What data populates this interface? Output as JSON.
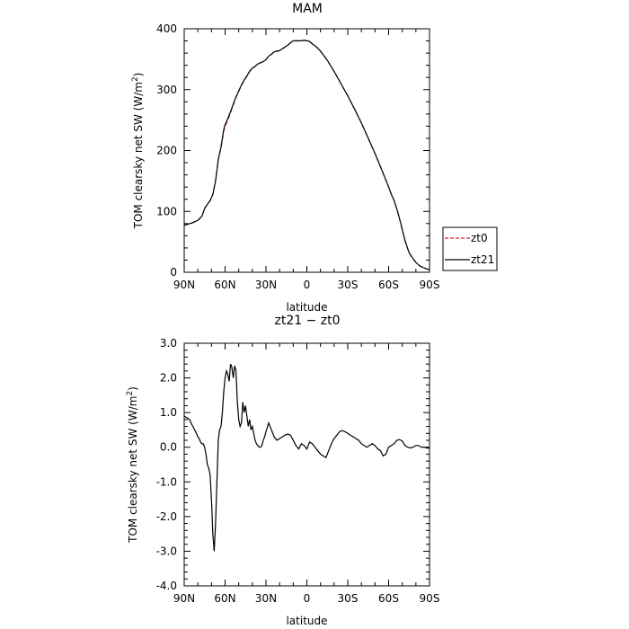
{
  "chart_data": [
    {
      "type": "line",
      "title": "MAM",
      "xlabel": "latitude",
      "ylabel": "TOM clearsky net SW (W/m²)",
      "ylabel_main": "TOM clearsky net SW (W/m",
      "ylabel_sup": "2",
      "ylabel_end": ")",
      "xlim": [
        90,
        -90
      ],
      "ylim": [
        0,
        400
      ],
      "xticks": [
        {
          "value": 90,
          "label": "90N"
        },
        {
          "value": 60,
          "label": "60N"
        },
        {
          "value": 30,
          "label": "30N"
        },
        {
          "value": 0,
          "label": "0"
        },
        {
          "value": -30,
          "label": "30S"
        },
        {
          "value": -60,
          "label": "60S"
        },
        {
          "value": -90,
          "label": "90S"
        }
      ],
      "yticks": [
        {
          "value": 0,
          "label": "0"
        },
        {
          "value": 100,
          "label": "100"
        },
        {
          "value": 200,
          "label": "200"
        },
        {
          "value": 300,
          "label": "300"
        },
        {
          "value": 400,
          "label": "400"
        }
      ],
      "legend": "right",
      "series": [
        {
          "name": "zt0",
          "color": "#d62020",
          "dash": true,
          "x": [
            90,
            85,
            80,
            77,
            75,
            73,
            71,
            69,
            67,
            65,
            63,
            61,
            60,
            58,
            56,
            54,
            52,
            50,
            48,
            46,
            44,
            42,
            40,
            38,
            36,
            34,
            32,
            30,
            28,
            26,
            24,
            22,
            20,
            18,
            16,
            14,
            12,
            10,
            8,
            6,
            4,
            2,
            0,
            -2,
            -4,
            -6,
            -8,
            -10,
            -15,
            -20,
            -25,
            -30,
            -35,
            -40,
            -45,
            -50,
            -55,
            -60,
            -62,
            -64,
            -66,
            -68,
            -70,
            -72,
            -75,
            -78,
            -80,
            -83,
            -86,
            -90
          ],
          "y": [
            77,
            80,
            85,
            92,
            105,
            112,
            118,
            128,
            150,
            185,
            205,
            232,
            240,
            250,
            262,
            275,
            287,
            297,
            307,
            315,
            322,
            330,
            335,
            338,
            342,
            344,
            346,
            349,
            355,
            358,
            362,
            363,
            364,
            367,
            370,
            373,
            377,
            380,
            380,
            380,
            380,
            381,
            380,
            379,
            375,
            372,
            368,
            363,
            348,
            330,
            310,
            290,
            268,
            245,
            220,
            195,
            168,
            140,
            128,
            118,
            104,
            88,
            70,
            52,
            32,
            22,
            16,
            10,
            7,
            4
          ]
        },
        {
          "name": "zt21",
          "color": "#000000",
          "dash": false,
          "x": [
            90,
            85,
            80,
            77,
            75,
            73,
            71,
            69,
            67,
            65,
            63,
            61,
            60,
            58,
            56,
            54,
            52,
            50,
            48,
            46,
            44,
            42,
            40,
            38,
            36,
            34,
            32,
            30,
            28,
            26,
            24,
            22,
            20,
            18,
            16,
            14,
            12,
            10,
            8,
            6,
            4,
            2,
            0,
            -2,
            -4,
            -6,
            -8,
            -10,
            -15,
            -20,
            -25,
            -30,
            -35,
            -40,
            -45,
            -50,
            -55,
            -60,
            -62,
            -64,
            -66,
            -68,
            -70,
            -72,
            -75,
            -78,
            -80,
            -83,
            -86,
            -90
          ],
          "y": [
            77.5,
            80.5,
            85.2,
            92.1,
            104.8,
            111.6,
            117.5,
            127.7,
            149.9,
            185.1,
            205.6,
            234.1,
            242.3,
            252.4,
            263.8,
            276.2,
            288.1,
            297.9,
            307.8,
            315.7,
            322.5,
            330.4,
            335.3,
            338.3,
            342.2,
            344.2,
            346.2,
            349.1,
            355.1,
            358.1,
            362.2,
            363.3,
            364.1,
            367.2,
            370.2,
            373.1,
            377.2,
            380.3,
            380.3,
            380.3,
            380.2,
            381.2,
            380.3,
            379.2,
            375.1,
            372.0,
            368.0,
            363.2,
            348.2,
            330.0,
            309.8,
            289.8,
            268.2,
            245.4,
            220.4,
            195.2,
            168.0,
            140.1,
            127.9,
            118.0,
            104.1,
            88.1,
            70.2,
            52.3,
            32.1,
            22.2,
            16.2,
            10.2,
            7.2,
            4.0
          ]
        }
      ]
    },
    {
      "type": "line",
      "title": "zt21 − zt0",
      "xlabel": "latitude",
      "ylabel": "TOM clearsky net SW (W/m²)",
      "ylabel_main": "TOM clearsky net SW (W/m",
      "ylabel_sup": "2",
      "ylabel_end": ")",
      "xlim": [
        90,
        -90
      ],
      "ylim": [
        -4,
        3
      ],
      "xticks": [
        {
          "value": 90,
          "label": "90N"
        },
        {
          "value": 60,
          "label": "60N"
        },
        {
          "value": 30,
          "label": "30N"
        },
        {
          "value": 0,
          "label": "0"
        },
        {
          "value": -30,
          "label": "30S"
        },
        {
          "value": -60,
          "label": "60S"
        },
        {
          "value": -90,
          "label": "90S"
        }
      ],
      "yticks": [
        {
          "value": 3,
          "label": "3.0"
        },
        {
          "value": 2,
          "label": "2.0"
        },
        {
          "value": 1,
          "label": "1.0"
        },
        {
          "value": 0,
          "label": "0.0"
        },
        {
          "value": -1,
          "label": "-1.0"
        },
        {
          "value": -2,
          "label": "-2.0"
        },
        {
          "value": -3,
          "label": "-3.0"
        },
        {
          "value": -4,
          "label": "-4.0"
        }
      ],
      "series": [
        {
          "name": "",
          "color": "#000000",
          "dash": false,
          "x": [
            90,
            88,
            86,
            85,
            83,
            81,
            80,
            79,
            78,
            77,
            76,
            75,
            74,
            73,
            72,
            71,
            70,
            69,
            68,
            67,
            66,
            65,
            64,
            63,
            62,
            61,
            60,
            59,
            58,
            57,
            56,
            55,
            54,
            53,
            52,
            51,
            50,
            49,
            48,
            47,
            46,
            45,
            44,
            43,
            42,
            41,
            40,
            39,
            38,
            37,
            36,
            35,
            34,
            33,
            32,
            31,
            30,
            28,
            26,
            24,
            22,
            20,
            18,
            16,
            14,
            12,
            10,
            8,
            6,
            4,
            2,
            0,
            -2,
            -4,
            -6,
            -8,
            -10,
            -12,
            -14,
            -16,
            -18,
            -20,
            -22,
            -24,
            -26,
            -28,
            -30,
            -32,
            -34,
            -36,
            -38,
            -40,
            -42,
            -44,
            -46,
            -48,
            -50,
            -52,
            -54,
            -56,
            -58,
            -60,
            -62,
            -64,
            -66,
            -68,
            -70,
            -72,
            -74,
            -76,
            -78,
            -80,
            -82,
            -84,
            -86,
            -88,
            -90
          ],
          "y": [
            0.9,
            0.85,
            0.8,
            0.7,
            0.55,
            0.4,
            0.3,
            0.25,
            0.15,
            0.1,
            0.1,
            0.0,
            -0.2,
            -0.5,
            -0.6,
            -0.8,
            -1.5,
            -2.5,
            -3.0,
            -2.2,
            -1.0,
            0.2,
            0.5,
            0.6,
            1.0,
            1.6,
            2.0,
            2.2,
            2.1,
            1.9,
            2.4,
            2.3,
            2.0,
            2.35,
            2.2,
            1.3,
            0.8,
            0.6,
            0.7,
            1.3,
            1.0,
            1.2,
            0.9,
            0.6,
            0.8,
            0.5,
            0.6,
            0.4,
            0.2,
            0.1,
            0.05,
            0.0,
            0.0,
            0.05,
            0.2,
            0.3,
            0.45,
            0.7,
            0.5,
            0.3,
            0.2,
            0.25,
            0.3,
            0.35,
            0.38,
            0.35,
            0.2,
            0.05,
            -0.05,
            0.1,
            0.05,
            -0.05,
            0.15,
            0.1,
            0.0,
            -0.1,
            -0.2,
            -0.25,
            -0.3,
            -0.1,
            0.1,
            0.25,
            0.35,
            0.45,
            0.48,
            0.45,
            0.4,
            0.35,
            0.3,
            0.25,
            0.2,
            0.1,
            0.05,
            0.0,
            0.05,
            0.1,
            0.05,
            -0.05,
            -0.1,
            -0.25,
            -0.2,
            0.0,
            0.05,
            0.1,
            0.2,
            0.22,
            0.18,
            0.05,
            0.0,
            -0.02,
            0.0,
            0.05,
            0.05,
            0.0,
            0.0,
            -0.02,
            -0.03
          ]
        }
      ]
    }
  ]
}
